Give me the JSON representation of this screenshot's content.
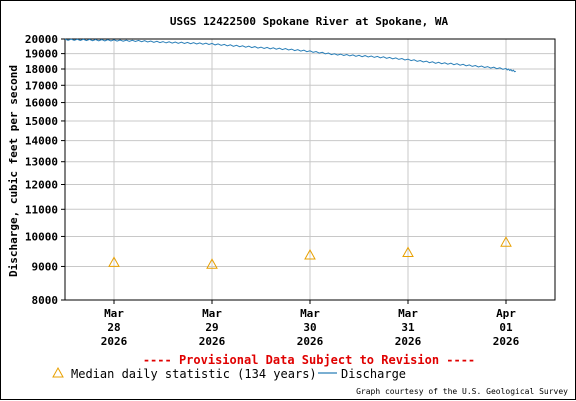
{
  "chart_data": {
    "type": "line",
    "title": "USGS 12422500 Spokane River at Spokane, WA",
    "ylabel": "Discharge, cubic feet per second",
    "ylim": [
      8000,
      20000
    ],
    "y_scale": "log",
    "y_ticks": [
      8000,
      9000,
      10000,
      11000,
      12000,
      13000,
      14000,
      15000,
      16000,
      17000,
      18000,
      19000,
      20000
    ],
    "y_tick_labels": [
      "8000",
      "9000",
      "10000",
      "11000",
      "12000",
      "13000",
      "14000",
      "15000",
      "16000",
      "17000",
      "18000",
      "19000",
      "20000"
    ],
    "x_range": [
      "2026-03-27T12:00",
      "2026-04-01T12:00"
    ],
    "x_ticks": [
      {
        "date": "2026-03-28",
        "lines": [
          "Mar",
          "28",
          "2026"
        ]
      },
      {
        "date": "2026-03-29",
        "lines": [
          "Mar",
          "29",
          "2026"
        ]
      },
      {
        "date": "2026-03-30",
        "lines": [
          "Mar",
          "30",
          "2026"
        ]
      },
      {
        "date": "2026-03-31",
        "lines": [
          "Mar",
          "31",
          "2026"
        ]
      },
      {
        "date": "2026-04-01",
        "lines": [
          "Apr",
          "01",
          "2026"
        ]
      }
    ],
    "grid": true,
    "series": [
      {
        "name": "Discharge",
        "color": "#2a7fb8",
        "points": [
          [
            "2026-03-27T12:00",
            19950
          ],
          [
            "2026-03-27T18:00",
            19930
          ],
          [
            "2026-03-28T00:00",
            19900
          ],
          [
            "2026-03-28T06:00",
            19860
          ],
          [
            "2026-03-28T12:00",
            19780
          ],
          [
            "2026-03-28T18:00",
            19720
          ],
          [
            "2026-03-29T00:00",
            19650
          ],
          [
            "2026-03-29T06:00",
            19520
          ],
          [
            "2026-03-29T12:00",
            19400
          ],
          [
            "2026-03-29T18:00",
            19300
          ],
          [
            "2026-03-30T00:00",
            19150
          ],
          [
            "2026-03-30T06:00",
            18950
          ],
          [
            "2026-03-30T12:00",
            18850
          ],
          [
            "2026-03-30T18:00",
            18750
          ],
          [
            "2026-03-31T00:00",
            18600
          ],
          [
            "2026-03-31T06:00",
            18420
          ],
          [
            "2026-03-31T12:00",
            18300
          ],
          [
            "2026-03-31T18:00",
            18150
          ],
          [
            "2026-04-01T00:00",
            18000
          ],
          [
            "2026-04-01T02:24",
            17850
          ]
        ]
      },
      {
        "name": "Median daily statistic (134 years)",
        "color": "#e8a000",
        "marker": "triangle",
        "points": [
          [
            "2026-03-28T00:00",
            9130
          ],
          [
            "2026-03-29T00:00",
            9070
          ],
          [
            "2026-03-30T00:00",
            9370
          ],
          [
            "2026-03-31T00:00",
            9450
          ],
          [
            "2026-04-01T00:00",
            9800
          ]
        ]
      }
    ],
    "annotation": "---- Provisional Data Subject to Revision ----",
    "credit": "Graph courtesy of the U.S. Geological Survey",
    "legend": [
      {
        "label": "Median daily statistic (134 years)",
        "symbol": "triangle",
        "color": "#e8a000"
      },
      {
        "label": "Discharge",
        "symbol": "line",
        "color": "#2a7fb8"
      }
    ]
  }
}
